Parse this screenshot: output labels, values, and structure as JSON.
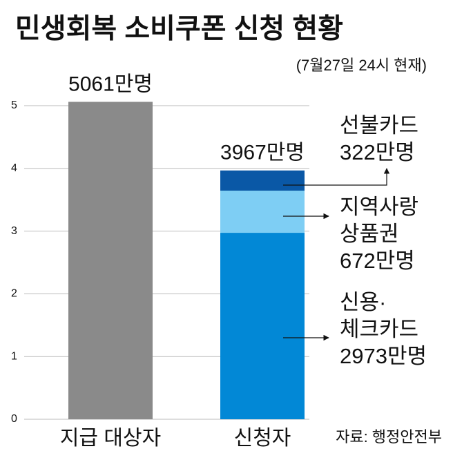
{
  "chart_data": {
    "type": "stacked-bar",
    "title": "민생회복 소비쿠폰 신청 현황",
    "subtitle": "(7월27일 24시 현재)",
    "source": "자료: 행정안전부",
    "categories": [
      "지급 대상자",
      "신청자"
    ],
    "series": [
      {
        "color": "#8a8a8a",
        "values": [
          5.061,
          null
        ]
      },
      {
        "name": "신용·\n체크카드",
        "color": "#0288d6",
        "values": [
          null,
          2.973
        ],
        "value_labels": [
          null,
          "2973만명"
        ]
      },
      {
        "name": "지역사랑\n상품권",
        "color": "#7ecef4",
        "values": [
          null,
          0.672
        ],
        "value_labels": [
          null,
          "672만명"
        ]
      },
      {
        "name": "선불카드",
        "color": "#0a58a6",
        "values": [
          null,
          0.322
        ],
        "value_labels": [
          null,
          "322만명"
        ]
      }
    ],
    "totals": [
      5.061,
      3.967
    ],
    "total_labels": [
      "5061만명",
      "3967만명"
    ],
    "ylim": [
      0,
      5
    ],
    "yticks": [
      0,
      1,
      2,
      3,
      4,
      5
    ],
    "grid": true
  }
}
